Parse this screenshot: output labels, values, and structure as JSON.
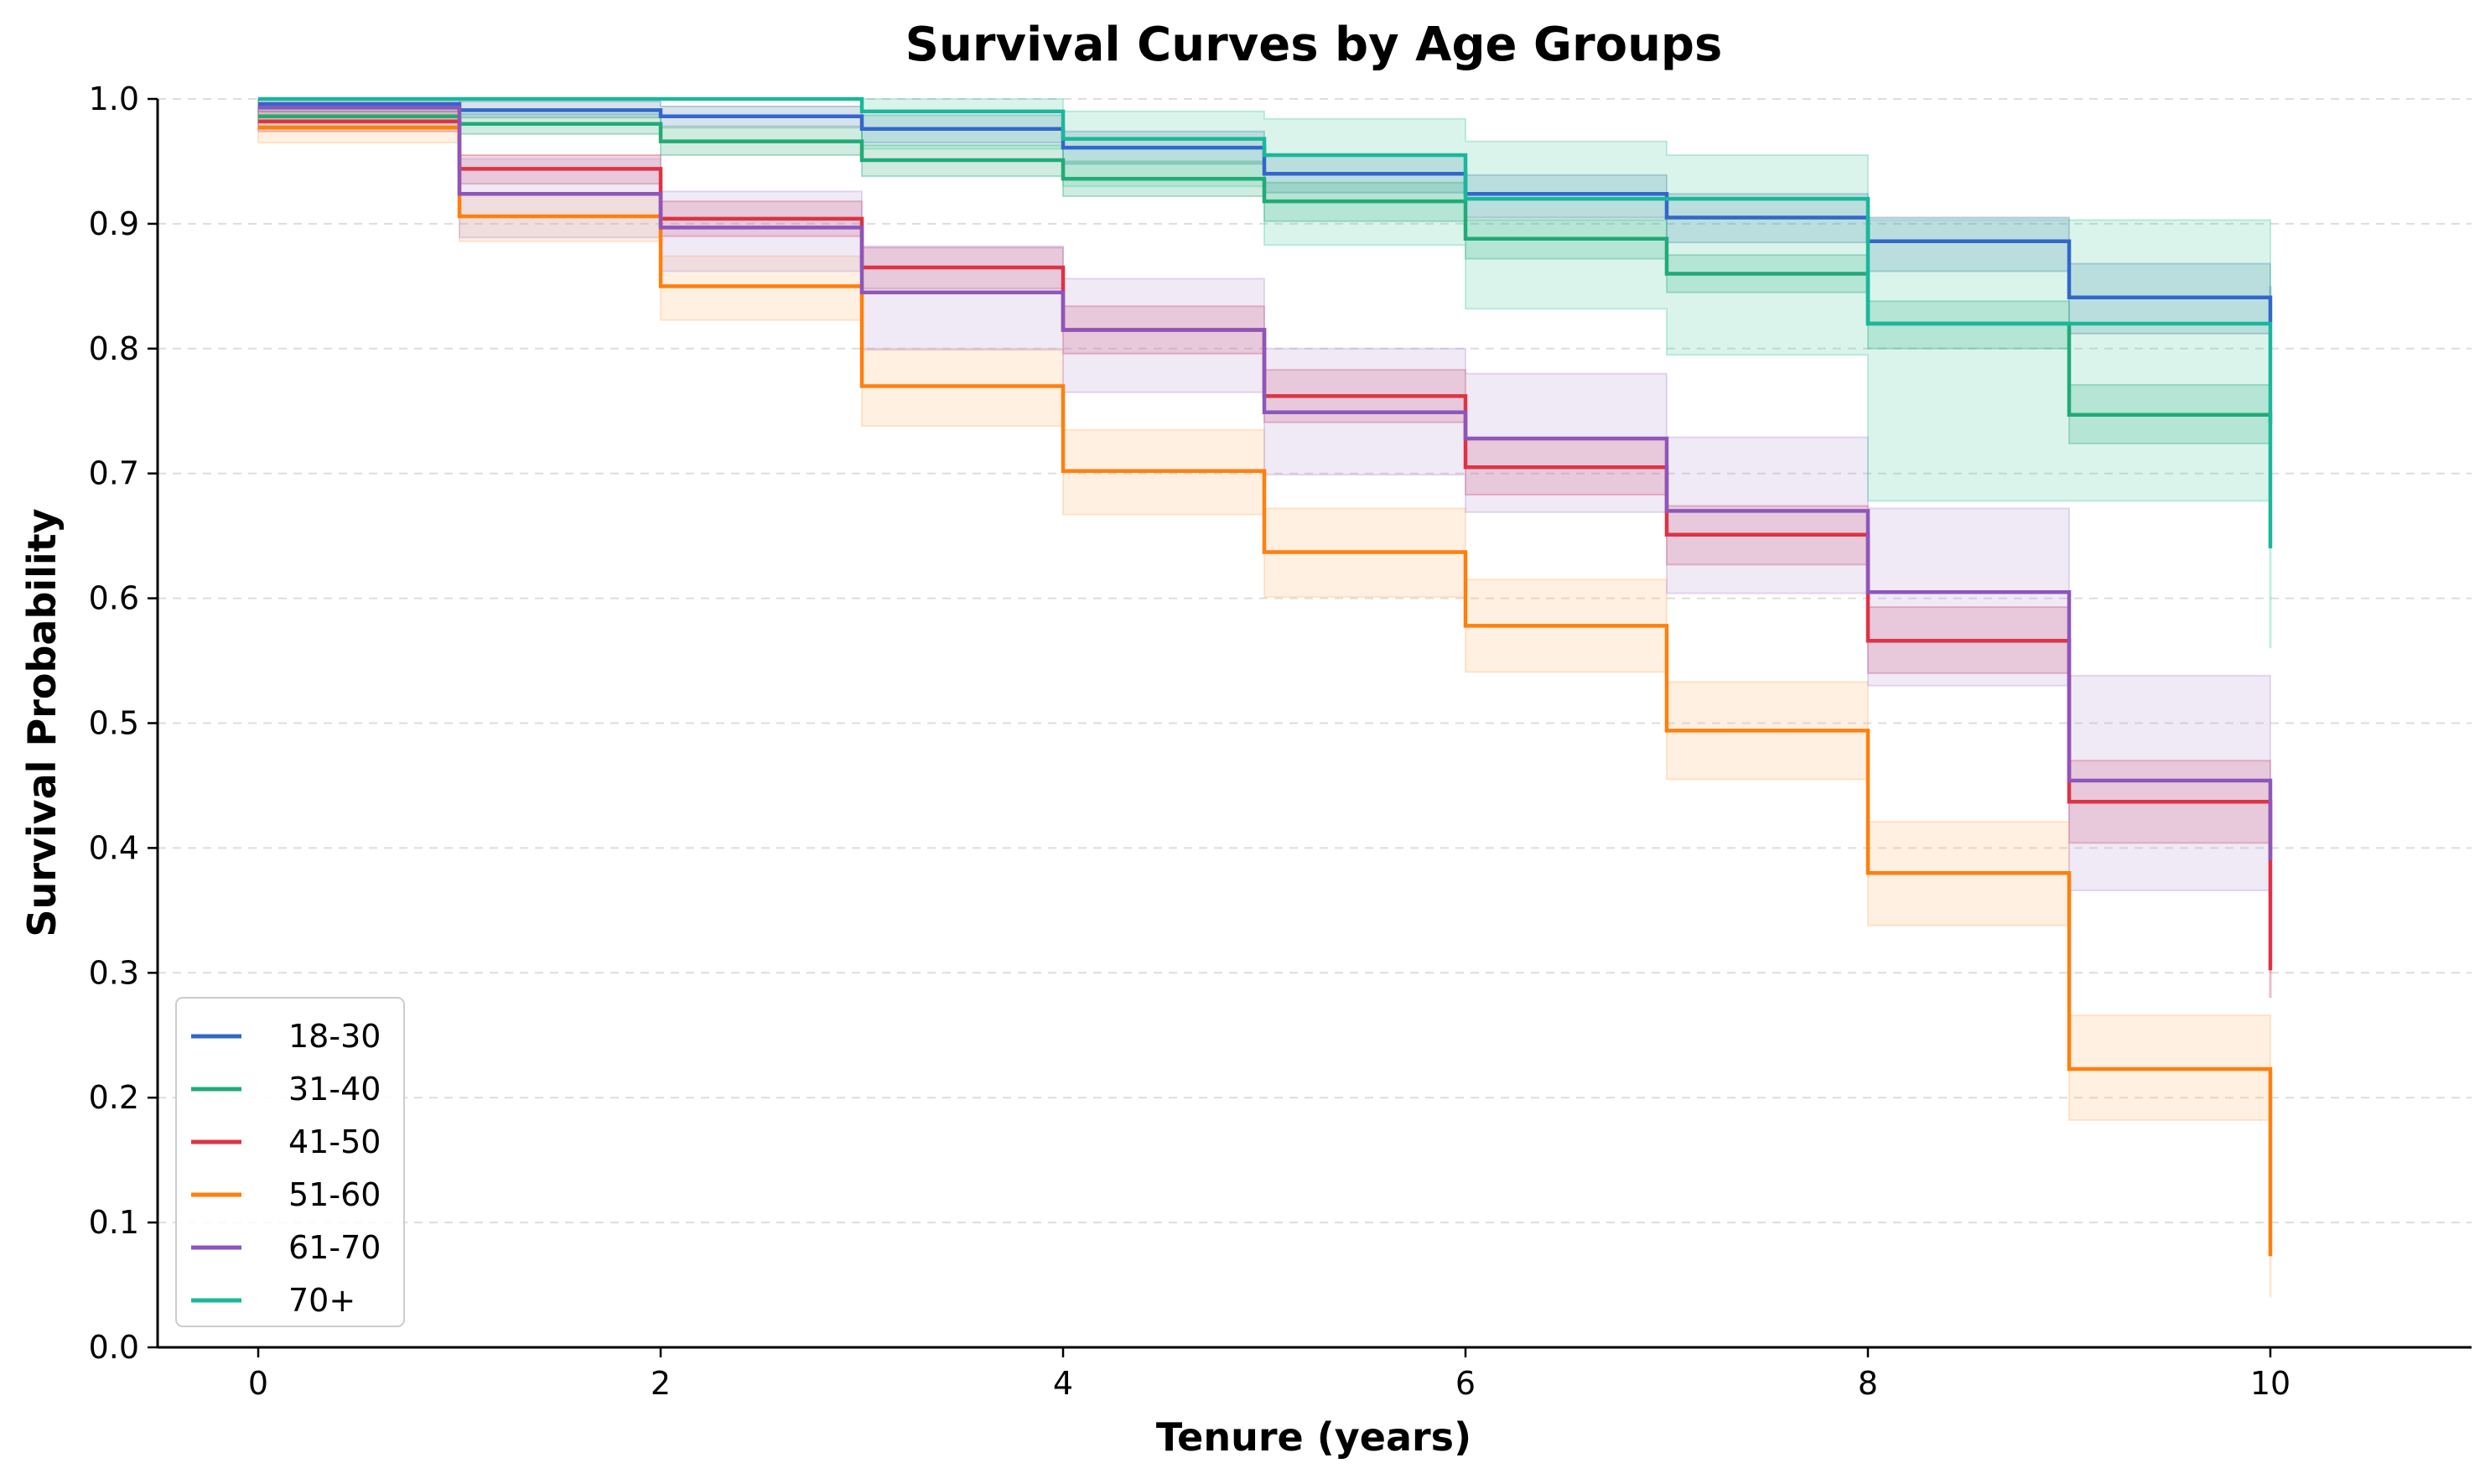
{
  "chart_data": {
    "type": "line",
    "title": "Survival Curves by Age Groups",
    "xlabel": "Tenure (years)",
    "ylabel": "Survival Probability",
    "xlim": [
      -0.5,
      11.0
    ],
    "ylim": [
      0.0,
      1.0
    ],
    "xticks": [
      0,
      2,
      4,
      6,
      8,
      10
    ],
    "xtick_labels": [
      "0",
      "2",
      "4",
      "6",
      "8",
      "10"
    ],
    "yticks": [
      0.0,
      0.1,
      0.2,
      0.3,
      0.4,
      0.5,
      0.6,
      0.7,
      0.8,
      0.9,
      1.0
    ],
    "ytick_labels": [
      "0.0",
      "0.1",
      "0.2",
      "0.3",
      "0.4",
      "0.5",
      "0.6",
      "0.7",
      "0.8",
      "0.9",
      "1.0"
    ],
    "grid": "horizontal dashed",
    "legend_position": "lower-left",
    "x": [
      0,
      1,
      2,
      3,
      4,
      5,
      6,
      7,
      8,
      9,
      10
    ],
    "series": [
      {
        "name": "18-30",
        "color": "#3366cc",
        "band_color": "#4a7fa8",
        "values": [
          0.996,
          0.991,
          0.986,
          0.976,
          0.961,
          0.94,
          0.924,
          0.905,
          0.886,
          0.841,
          0.821
        ],
        "lower": [
          0.99,
          0.985,
          0.978,
          0.965,
          0.948,
          0.925,
          0.905,
          0.885,
          0.862,
          0.812,
          0.8
        ],
        "upper": [
          1.0,
          0.998,
          0.994,
          0.987,
          0.974,
          0.955,
          0.939,
          0.924,
          0.905,
          0.868,
          0.85
        ]
      },
      {
        "name": "31-40",
        "color": "#22aa77",
        "band_color": "#2aaa77",
        "values": [
          0.986,
          0.98,
          0.966,
          0.951,
          0.936,
          0.918,
          0.888,
          0.86,
          0.82,
          0.747,
          0.74
        ],
        "lower": [
          0.978,
          0.972,
          0.955,
          0.938,
          0.922,
          0.902,
          0.872,
          0.845,
          0.8,
          0.724,
          0.72
        ],
        "upper": [
          0.994,
          0.988,
          0.977,
          0.963,
          0.95,
          0.933,
          0.903,
          0.875,
          0.838,
          0.771,
          0.77
        ]
      },
      {
        "name": "41-50",
        "color": "#dd3344",
        "band_color": "#cc4466",
        "values": [
          0.982,
          0.944,
          0.904,
          0.865,
          0.815,
          0.762,
          0.705,
          0.651,
          0.566,
          0.437,
          0.302
        ],
        "lower": [
          0.974,
          0.932,
          0.89,
          0.848,
          0.796,
          0.741,
          0.683,
          0.627,
          0.54,
          0.404,
          0.28
        ],
        "upper": [
          0.99,
          0.955,
          0.918,
          0.881,
          0.834,
          0.783,
          0.727,
          0.674,
          0.593,
          0.47,
          0.39
        ]
      },
      {
        "name": "51-60",
        "color": "#ff7f0e",
        "band_color": "#ffbb77",
        "values": [
          0.977,
          0.906,
          0.85,
          0.77,
          0.702,
          0.637,
          0.578,
          0.494,
          0.38,
          0.223,
          0.073
        ],
        "lower": [
          0.965,
          0.886,
          0.823,
          0.738,
          0.667,
          0.601,
          0.541,
          0.455,
          0.338,
          0.182,
          0.04
        ],
        "upper": [
          0.988,
          0.925,
          0.874,
          0.8,
          0.735,
          0.672,
          0.615,
          0.533,
          0.421,
          0.266,
          0.08
        ]
      },
      {
        "name": "61-70",
        "color": "#8e55bb",
        "band_color": "#bb99d6",
        "values": [
          0.993,
          0.924,
          0.897,
          0.845,
          0.815,
          0.749,
          0.728,
          0.67,
          0.605,
          0.454,
          0.39
        ],
        "lower": [
          0.985,
          0.889,
          0.862,
          0.799,
          0.765,
          0.699,
          0.669,
          0.604,
          0.53,
          0.366,
          0.3
        ],
        "upper": [
          1.0,
          0.952,
          0.926,
          0.882,
          0.856,
          0.8,
          0.78,
          0.729,
          0.672,
          0.538,
          0.45
        ]
      },
      {
        "name": "70+",
        "color": "#1ab79a",
        "band_color": "#55ccaa",
        "values": [
          1.0,
          1.0,
          1.0,
          0.99,
          0.968,
          0.955,
          0.92,
          0.92,
          0.82,
          0.82,
          0.64
        ],
        "lower": [
          1.0,
          1.0,
          1.0,
          0.96,
          0.93,
          0.883,
          0.832,
          0.795,
          0.678,
          0.678,
          0.56
        ],
        "upper": [
          1.0,
          1.0,
          1.0,
          1.0,
          0.99,
          0.984,
          0.966,
          0.955,
          0.903,
          0.903,
          0.82
        ]
      }
    ]
  }
}
